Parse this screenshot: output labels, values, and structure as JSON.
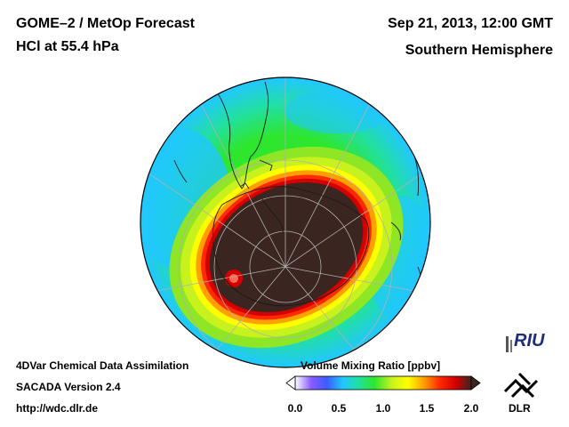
{
  "header": {
    "title_left": "GOME–2 / MetOp Forecast",
    "subtitle_left": "HCl at 55.4 hPa",
    "title_right": "Sep 21, 2013, 12:00 GMT",
    "subtitle_right": "Southern Hemisphere"
  },
  "footer": {
    "line1": "4DVar Chemical Data Assimilation",
    "line2": "SACADA Version 2.4",
    "line3": "http://wdc.dlr.de"
  },
  "colorbar": {
    "title": "Volume Mixing Ratio [ppbv]",
    "ticks": [
      "0.0",
      "0.5",
      "1.0",
      "1.5",
      "2.0"
    ],
    "min": 0.0,
    "max": 2.0,
    "colors": [
      "#ffffff",
      "#8a5cff",
      "#3a5cff",
      "#21c7ff",
      "#22e0a0",
      "#2ee62e",
      "#c8f21e",
      "#ffff00",
      "#ffa000",
      "#ff2a00",
      "#d40000",
      "#3b2520"
    ]
  },
  "logos": {
    "riu": "RIU",
    "dlr": "DLR"
  }
}
